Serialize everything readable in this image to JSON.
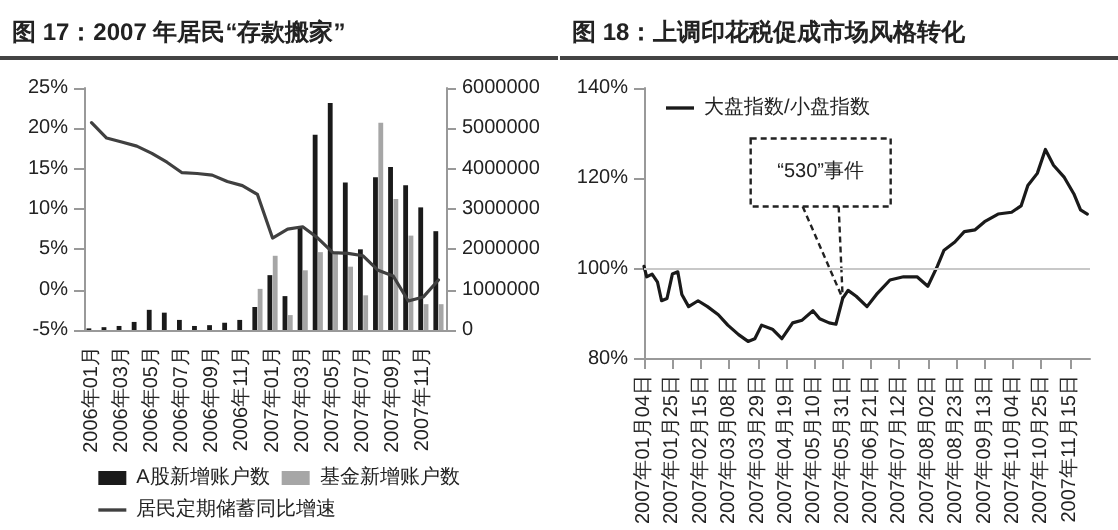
{
  "chart_data": [
    {
      "type": "bar",
      "title": "图 17：2007 年居民“存款搬家”",
      "categories": [
        "2006年01月",
        null,
        "2006年03月",
        null,
        "2006年05月",
        null,
        "2006年07月",
        null,
        "2006年09月",
        null,
        "2006年11月",
        null,
        "2007年01月",
        null,
        "2007年03月",
        null,
        "2007年05月",
        null,
        "2007年07月",
        null,
        "2007年09月",
        null,
        "2007年11月",
        null
      ],
      "series": [
        {
          "name": "A股新增账户数",
          "color": "#1a1a1a",
          "axis": "y2",
          "values": [
            40000,
            70000,
            100000,
            200000,
            500000,
            430000,
            250000,
            100000,
            120000,
            180000,
            250000,
            570000,
            1360000,
            840000,
            2540000,
            4840000,
            5630000,
            3660000,
            2000000,
            3790000,
            4040000,
            3590000,
            3040000,
            2450000
          ]
        },
        {
          "name": "基金新增账户数",
          "color": "#a6a6a6",
          "axis": "y2",
          "values": [
            null,
            null,
            null,
            null,
            null,
            null,
            null,
            null,
            null,
            null,
            null,
            1020000,
            1840000,
            370000,
            1480000,
            1930000,
            1900000,
            1570000,
            860000,
            5140000,
            3250000,
            2340000,
            640000,
            640000
          ]
        },
        {
          "name": "居民定期储蓄同比增速",
          "type": "line",
          "color": "#404040",
          "values": [
            20.7,
            18.8,
            18.3,
            17.8,
            16.9,
            15.8,
            14.5,
            14.4,
            14.2,
            13.4,
            12.9,
            11.8,
            6.4,
            7.5,
            7.8,
            6.4,
            4.6,
            4.5,
            4.2,
            2.4,
            1.7,
            -1.4,
            -0.9,
            1.2
          ]
        }
      ],
      "ylim": [
        -5,
        25
      ],
      "yticks": [
        {
          "value": -5,
          "label": "-5%"
        },
        {
          "value": 0,
          "label": "0%"
        },
        {
          "value": 5,
          "label": "5%"
        },
        {
          "value": 10,
          "label": "10%"
        },
        {
          "value": 15,
          "label": "15%"
        },
        {
          "value": 20,
          "label": "20%"
        },
        {
          "value": 25,
          "label": "25%"
        }
      ],
      "y2lim": [
        0,
        6000000
      ],
      "y2ticks": [
        0,
        1000000,
        2000000,
        3000000,
        4000000,
        5000000,
        6000000
      ],
      "legend": "bottom",
      "marker": "none"
    },
    {
      "type": "line",
      "title": "图 18：上调印花税促成市场风格转化",
      "x": [
        "2007-01-04",
        "2007-01-06",
        "2007-01-10",
        "2007-01-14",
        "2007-01-17",
        "2007-01-21",
        "2007-01-25",
        "2007-01-29",
        "2007-02-01",
        "2007-02-06",
        "2007-02-13",
        "2007-02-20",
        "2007-02-28",
        "2007-03-07",
        "2007-03-15",
        "2007-03-22",
        "2007-03-27",
        "2007-04-01",
        "2007-04-09",
        "2007-04-16",
        "2007-04-24",
        "2007-05-01",
        "2007-05-09",
        "2007-05-14",
        "2007-05-21",
        "2007-05-26",
        "2007-05-31",
        "2007-06-04",
        "2007-06-10",
        "2007-06-18",
        "2007-06-25",
        "2007-07-05",
        "2007-07-15",
        "2007-07-25",
        "2007-08-02",
        "2007-08-09",
        "2007-08-14",
        "2007-08-22",
        "2007-08-29",
        "2007-09-06",
        "2007-09-13",
        "2007-09-23",
        "2007-10-03",
        "2007-10-10",
        "2007-10-15",
        "2007-10-22",
        "2007-10-28",
        "2007-11-03",
        "2007-11-11",
        "2007-11-18",
        "2007-11-23",
        "2007-11-28"
      ],
      "series": [
        {
          "name": "大盘指数/小盘指数",
          "color": "#1a1a1a",
          "values": [
            100.5,
            98.2,
            98.8,
            97.0,
            92.9,
            93.4,
            98.8,
            99.3,
            94.3,
            91.6,
            92.9,
            91.6,
            89.8,
            87.5,
            85.4,
            83.9,
            84.5,
            87.5,
            86.6,
            84.5,
            88.0,
            88.6,
            90.7,
            88.9,
            88.0,
            87.7,
            93.4,
            95.2,
            93.9,
            91.6,
            94.3,
            97.5,
            98.2,
            98.2,
            96.1,
            100.5,
            104.1,
            105.9,
            108.2,
            108.6,
            110.4,
            112.1,
            112.5,
            113.9,
            118.4,
            121.1,
            126.4,
            122.9,
            120.2,
            116.6,
            113.0,
            112.1
          ]
        }
      ],
      "xlim": [
        "2007-01-04",
        "2007-11-30"
      ],
      "xticks": [
        {
          "value": "2007-01-04",
          "label": "2007年01月04日"
        },
        {
          "value": "2007-01-25",
          "label": "2007年01月25日"
        },
        {
          "value": "2007-02-15",
          "label": "2007年02月15日"
        },
        {
          "value": "2007-03-08",
          "label": "2007年03月08日"
        },
        {
          "value": "2007-03-29",
          "label": "2007年03月29日"
        },
        {
          "value": "2007-04-19",
          "label": "2007年04月19日"
        },
        {
          "value": "2007-05-10",
          "label": "2007年05月10日"
        },
        {
          "value": "2007-05-31",
          "label": "2007年05月31日"
        },
        {
          "value": "2007-06-21",
          "label": "2007年06月21日"
        },
        {
          "value": "2007-07-12",
          "label": "2007年07月12日"
        },
        {
          "value": "2007-08-02",
          "label": "2007年08月02日"
        },
        {
          "value": "2007-08-23",
          "label": "2007年08月23日"
        },
        {
          "value": "2007-09-13",
          "label": "2007年09月13日"
        },
        {
          "value": "2007-10-04",
          "label": "2007年10月04日"
        },
        {
          "value": "2007-10-25",
          "label": "2007年10月25日"
        },
        {
          "value": "2007-11-15",
          "label": "2007年11月15日"
        }
      ],
      "ylim": [
        80,
        140
      ],
      "yticks": [
        {
          "value": 80,
          "label": "80%"
        },
        {
          "value": 100,
          "label": "100%"
        },
        {
          "value": 120,
          "label": "120%"
        },
        {
          "value": 140,
          "label": "140%"
        }
      ],
      "ref_lines": [
        {
          "axis": "y",
          "value": 100,
          "color": "#c8c8c8"
        }
      ],
      "annotations": [
        {
          "text": "“530”事件",
          "x": "2007-05-31",
          "y": 93.4
        }
      ],
      "legend": "top left",
      "marker": "none"
    }
  ]
}
